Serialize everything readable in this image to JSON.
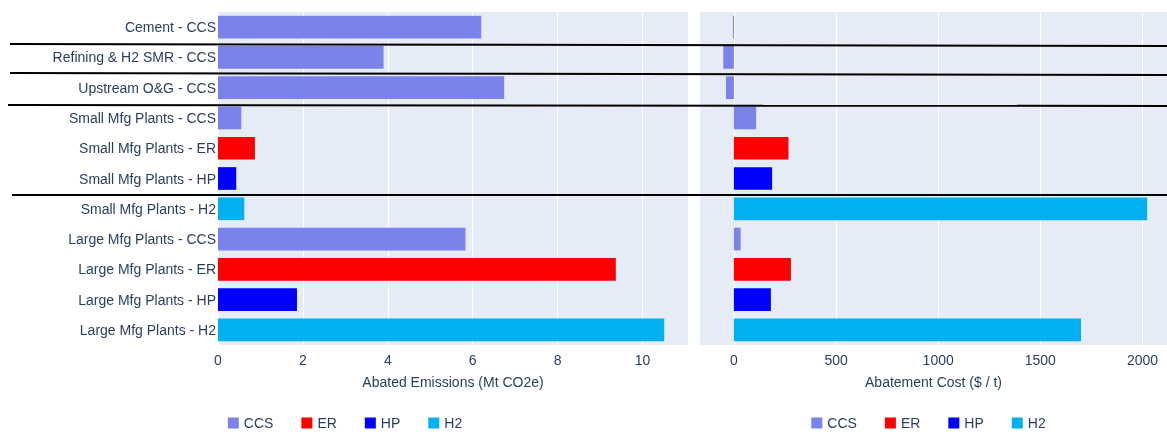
{
  "chart_data": [
    {
      "type": "bar",
      "orientation": "horizontal",
      "xlabel": "Abated Emissions (Mt CO2e)",
      "categories": [
        "Cement - CCS",
        "Refining & H2 SMR - CCS",
        "Upstream O&G - CCS",
        "Small Mfg Plants - CCS",
        "Small Mfg Plants - ER",
        "Small Mfg Plants - HP",
        "Small Mfg Plants - H2",
        "Large Mfg Plants - CCS",
        "Large Mfg Plants - ER",
        "Large Mfg Plants - HP",
        "Large Mfg Plants - H2"
      ],
      "series": [
        {
          "name": "CCS",
          "color": "#7b83eb",
          "values": [
            6.2,
            3.9,
            6.74,
            0.55,
            null,
            null,
            null,
            5.83,
            null,
            null,
            null
          ]
        },
        {
          "name": "ER",
          "color": "#ff0000",
          "values": [
            null,
            null,
            null,
            null,
            0.87,
            null,
            null,
            null,
            9.37,
            null,
            null
          ]
        },
        {
          "name": "HP",
          "color": "#0000ff",
          "values": [
            null,
            null,
            null,
            null,
            null,
            0.43,
            null,
            null,
            null,
            1.86,
            null
          ]
        },
        {
          "name": "H2",
          "color": "#00b0f0",
          "values": [
            null,
            null,
            null,
            null,
            null,
            null,
            0.62,
            null,
            null,
            null,
            10.51
          ]
        }
      ],
      "xlim": [
        0,
        11.07
      ],
      "xticks": [
        0,
        2,
        4,
        6,
        8,
        10
      ],
      "grid": "x",
      "legend": "bottom"
    },
    {
      "type": "bar",
      "orientation": "horizontal",
      "xlabel": "Abatement Cost ($ / t)",
      "categories": [
        null,
        null,
        null,
        null,
        null,
        null,
        null,
        null,
        null,
        null,
        null
      ],
      "series": [
        {
          "name": "CCS",
          "color": "#7b83eb",
          "values": [
            -5,
            -52,
            -39,
            109,
            null,
            null,
            null,
            33,
            null,
            null,
            null
          ]
        },
        {
          "name": "ER",
          "color": "#ff0000",
          "values": [
            null,
            null,
            null,
            null,
            267,
            null,
            null,
            null,
            279,
            null,
            null
          ]
        },
        {
          "name": "HP",
          "color": "#0000ff",
          "values": [
            null,
            null,
            null,
            null,
            null,
            187,
            null,
            null,
            null,
            181,
            null
          ]
        },
        {
          "name": "H2",
          "color": "#00b0f0",
          "values": [
            null,
            null,
            null,
            null,
            null,
            null,
            2023,
            null,
            null,
            null,
            1699
          ]
        }
      ],
      "xlim": [
        -166,
        2120
      ],
      "xticks": [
        0,
        500,
        1000,
        1500,
        2000
      ],
      "grid": "x",
      "legend": "bottom"
    }
  ]
}
